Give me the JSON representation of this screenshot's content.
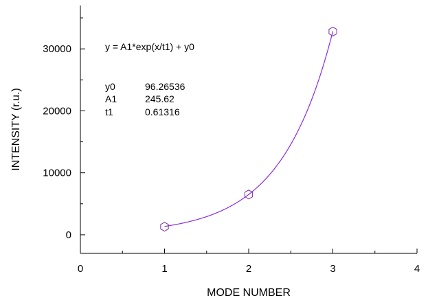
{
  "chart_data": {
    "type": "scatter",
    "xlabel": "MODE NUMBER",
    "ylabel": "INTENSITY (r.u.)",
    "xlim": [
      0,
      4
    ],
    "ylim": [
      -3000,
      37000
    ],
    "xticks": [
      0,
      1,
      2,
      3,
      4
    ],
    "xtick_labels": [
      "0",
      "1",
      "2",
      "3",
      "4"
    ],
    "yticks": [
      0,
      10000,
      20000,
      30000
    ],
    "ytick_labels": [
      "0",
      "10000",
      "20000",
      "30000"
    ],
    "grid": false,
    "marker": "hexagon",
    "marker_color": "#7a2a9c",
    "fit_color": "#8a2be2",
    "points": [
      {
        "x": 1,
        "y": 1300
      },
      {
        "x": 2,
        "y": 6500
      },
      {
        "x": 3,
        "y": 32800
      }
    ],
    "fit": {
      "function": "y0 + A1*exp(x/t1)",
      "x_range": [
        1,
        3
      ],
      "params": {
        "y0": 96.26536,
        "A1": 245.62,
        "t1": 0.61316
      }
    },
    "annotation": {
      "equation": "y = A1*exp(x/t1) + y0",
      "rows": [
        {
          "name": "y0",
          "value": "96.26536"
        },
        {
          "name": "A1",
          "value": "245.62"
        },
        {
          "name": "t1",
          "value": "0.61316"
        }
      ]
    }
  }
}
